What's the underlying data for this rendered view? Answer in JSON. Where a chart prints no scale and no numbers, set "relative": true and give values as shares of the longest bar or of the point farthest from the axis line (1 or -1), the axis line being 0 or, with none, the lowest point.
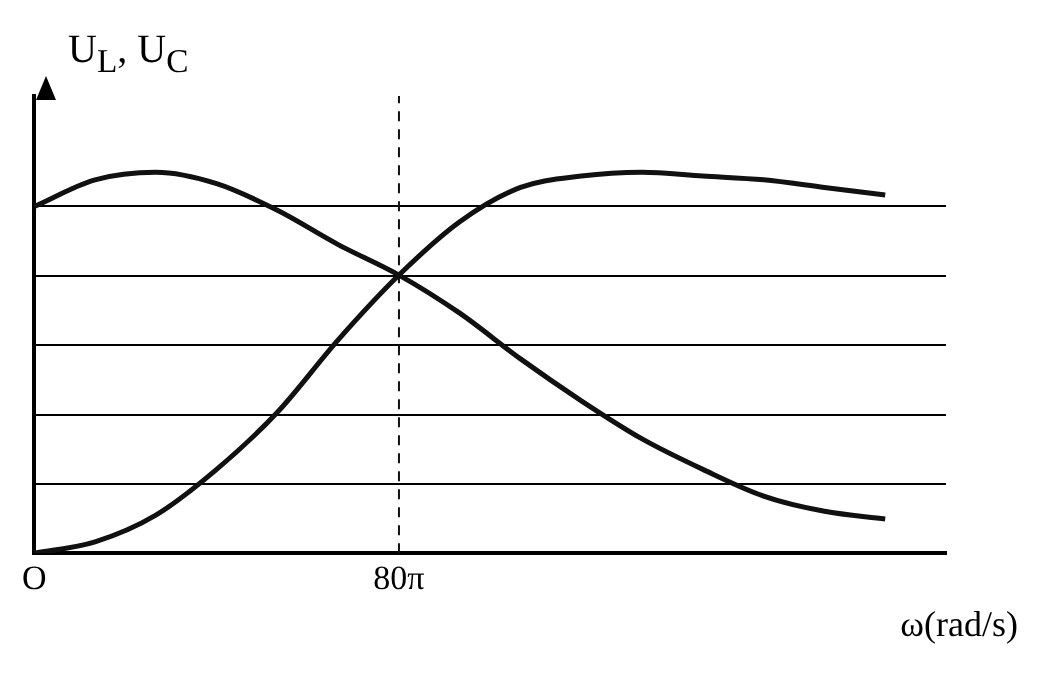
{
  "chart_data": {
    "type": "line",
    "relative": true,
    "xlabel": "ω(rad/s)",
    "ylabel": "U$_{L}$, U$_{C}$",
    "categories": [
      "O",
      null,
      null,
      null,
      null,
      null,
      "80π",
      null,
      null,
      null,
      null,
      null,
      null,
      null,
      null,
      null
    ],
    "grid": "y",
    "marker": "none",
    "line_style": "solid",
    "series": [
      {
        "color": "#111111",
        "values": [
          0.91,
          0.98,
          1,
          0.97,
          0.9,
          0.81,
          0.73,
          0.63,
          0.51,
          0.4,
          0.3,
          0.22,
          0.15,
          0.11,
          0.09,
          null
        ]
      },
      {
        "color": "#111111",
        "values": [
          0,
          0.03,
          0.1,
          0.22,
          0.37,
          0.56,
          0.73,
          0.87,
          0.96,
          0.99,
          1,
          0.99,
          0.98,
          0.96,
          0.94,
          null
        ]
      }
    ],
    "ref_lines": [
      {
        "axis": "x",
        "value": "80π",
        "line_style": "dashed",
        "color": "#111111"
      }
    ]
  }
}
